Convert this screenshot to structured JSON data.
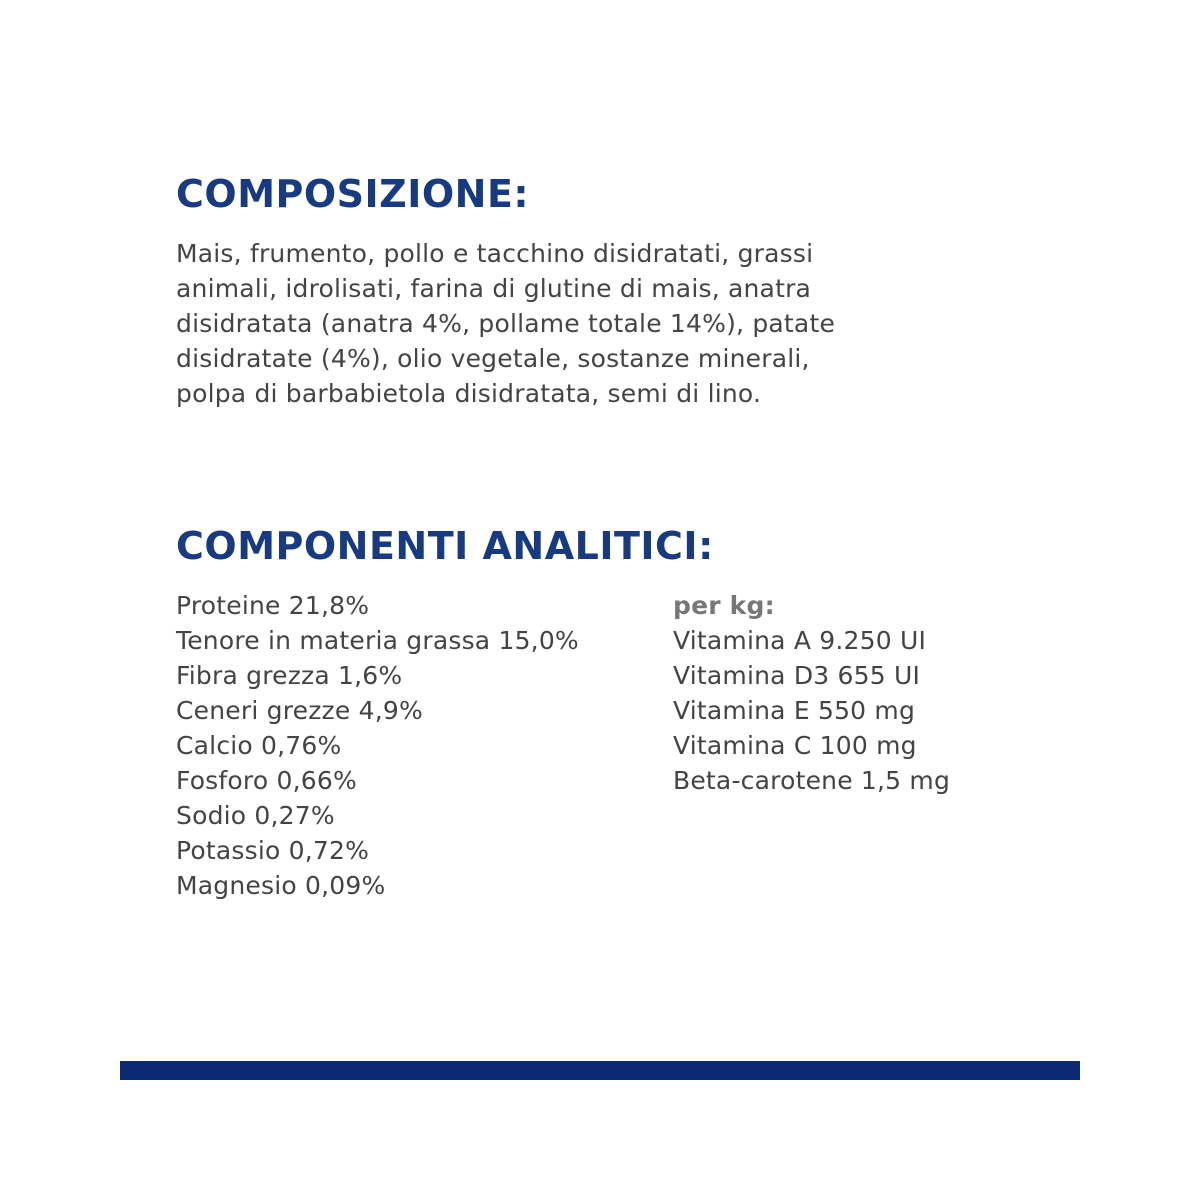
{
  "composition": {
    "title": "COMPOSIZIONE:",
    "lines": [
      "Mais, frumento, pollo e tacchino disidratati, grassi",
      "animali, idrolisati, farina di glutine di mais, anatra",
      "disidratata (anatra 4%, pollame totale 14%), patate",
      "disidratate (4%), olio vegetale, sostanze minerali,",
      "polpa di barbabietola disidratata, semi di lino."
    ]
  },
  "analytical": {
    "title": "COMPONENTI ANALITICI:",
    "components": [
      "Proteine 21,8%",
      "Tenore in materia grassa 15,0%",
      "Fibra grezza 1,6%",
      "Ceneri grezze 4,9%",
      "Calcio 0,76%",
      "Fosforo 0,66%",
      "Sodio 0,27%",
      "Potassio 0,72%",
      "Magnesio 0,09%"
    ],
    "per_kg_label": "per kg:",
    "vitamins": [
      "Vitamina A 9.250 UI",
      "Vitamina D3 655 UI",
      "Vitamina E 550 mg",
      "Vitamina C 100 mg",
      "Beta-carotene 1,5 mg"
    ]
  },
  "colors": {
    "heading": "#173a80",
    "bar": "#0b2a73",
    "text": "#444444"
  }
}
